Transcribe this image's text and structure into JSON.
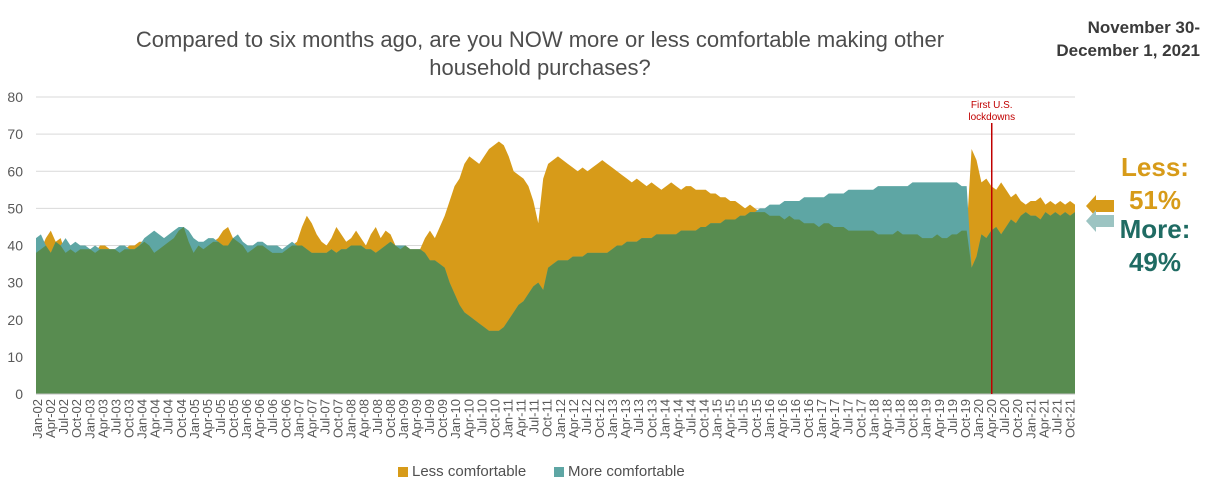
{
  "chart_data": {
    "type": "area",
    "title": "Compared to six months ago, are you NOW more or less comfortable making other household purchases?",
    "subtitle": "November 30-December 1, 2021",
    "date_line1": "November 30-",
    "date_line2": "December 1, 2021",
    "ylim": [
      0,
      80
    ],
    "yticks": [
      0,
      10,
      20,
      30,
      40,
      50,
      60,
      70,
      80
    ],
    "grid": true,
    "x_tick_labels": [
      "Jan-02",
      "Apr-02",
      "Jul-02",
      "Oct-02",
      "Jan-03",
      "Apr-03",
      "Jul-03",
      "Oct-03",
      "Jan-04",
      "Apr-04",
      "Jul-04",
      "Oct-04",
      "Jan-05",
      "Apr-05",
      "Jul-05",
      "Oct-05",
      "Jan-06",
      "Apr-06",
      "Jul-06",
      "Oct-06",
      "Jan-07",
      "Apr-07",
      "Jul-07",
      "Oct-07",
      "Jan-08",
      "Apr-08",
      "Jul-08",
      "Oct-08",
      "Jan-09",
      "Apr-09",
      "Jul-09",
      "Oct-09",
      "Jan-10",
      "Apr-10",
      "Jul-10",
      "Oct-10",
      "Jan-11",
      "Apr-11",
      "Jul-11",
      "Oct-11",
      "Jan-12",
      "Apr-12",
      "Jul-12",
      "Oct-12",
      "Jan-13",
      "Apr-13",
      "Jul-13",
      "Oct-13",
      "Jan-14",
      "Apr-14",
      "Jul-14",
      "Oct-14",
      "Jan-15",
      "Apr-15",
      "Jul-15",
      "Oct-15",
      "Jan-16",
      "Apr-16",
      "Jul-16",
      "Oct-16",
      "Jan-17",
      "Apr-17",
      "Jul-17",
      "Oct-17",
      "Jan-18",
      "Apr-18",
      "Jul-18",
      "Oct-18",
      "Jan-19",
      "Apr-19",
      "Jul-19",
      "Oct-19",
      "Jan-20",
      "Apr-20",
      "Jul-20",
      "Oct-20",
      "Jan-21",
      "Apr-21",
      "Jul-21",
      "Oct-21"
    ],
    "legend_position": "bottom",
    "series": [
      {
        "name": "Less comfortable",
        "color": "#d79b19",
        "values": [
          38,
          39,
          42,
          44,
          41,
          42,
          38,
          39,
          38,
          39,
          39,
          39,
          38,
          40,
          40,
          39,
          39,
          38,
          39,
          40,
          40,
          41,
          41,
          40,
          38,
          39,
          40,
          41,
          42,
          44,
          45,
          41,
          38,
          40,
          39,
          40,
          41,
          42,
          44,
          45,
          42,
          41,
          40,
          38,
          39,
          40,
          40,
          39,
          38,
          38,
          38,
          39,
          40,
          41,
          45,
          48,
          46,
          43,
          41,
          40,
          42,
          45,
          43,
          41,
          42,
          44,
          42,
          40,
          43,
          45,
          42,
          44,
          43,
          40,
          39,
          40,
          39,
          39,
          39,
          42,
          44,
          42,
          45,
          48,
          52,
          56,
          58,
          62,
          64,
          63,
          62,
          64,
          66,
          67,
          68,
          67,
          64,
          60,
          59,
          58,
          56,
          52,
          46,
          58,
          62,
          63,
          64,
          63,
          62,
          61,
          60,
          61,
          60,
          61,
          62,
          63,
          62,
          61,
          60,
          59,
          58,
          57,
          58,
          57,
          56,
          57,
          56,
          55,
          56,
          57,
          56,
          55,
          56,
          56,
          55,
          55,
          55,
          54,
          54,
          53,
          53,
          52,
          52,
          51,
          50,
          51,
          50,
          49,
          49,
          48,
          48,
          48,
          47,
          48,
          47,
          47,
          46,
          46,
          46,
          45,
          46,
          46,
          45,
          45,
          45,
          44,
          44,
          44,
          44,
          44,
          44,
          43,
          43,
          43,
          43,
          44,
          43,
          43,
          43,
          43,
          42,
          42,
          42,
          43,
          42,
          42,
          43,
          43,
          44,
          44,
          66,
          63,
          57,
          58,
          56,
          55,
          57,
          55,
          53,
          54,
          52,
          51,
          52,
          52,
          53,
          51,
          52,
          51,
          52,
          51,
          52,
          51
        ]
      },
      {
        "name": "More comfortable",
        "color": "#5ea6a4",
        "values": [
          42,
          43,
          40,
          38,
          41,
          40,
          42,
          40,
          41,
          40,
          40,
          39,
          40,
          39,
          39,
          39,
          39,
          40,
          40,
          39,
          39,
          40,
          42,
          43,
          44,
          43,
          42,
          43,
          44,
          45,
          45,
          44,
          42,
          41,
          41,
          42,
          42,
          41,
          40,
          40,
          42,
          43,
          41,
          40,
          40,
          41,
          41,
          40,
          40,
          40,
          39,
          40,
          41,
          40,
          40,
          39,
          38,
          38,
          38,
          38,
          39,
          38,
          39,
          39,
          40,
          40,
          40,
          39,
          39,
          38,
          39,
          40,
          41,
          40,
          40,
          40,
          39,
          39,
          39,
          38,
          36,
          36,
          35,
          34,
          30,
          27,
          24,
          22,
          21,
          20,
          19,
          18,
          17,
          17,
          17,
          18,
          20,
          22,
          24,
          25,
          27,
          29,
          30,
          28,
          34,
          35,
          36,
          36,
          36,
          37,
          37,
          37,
          38,
          38,
          38,
          38,
          38,
          39,
          40,
          40,
          41,
          41,
          41,
          42,
          42,
          42,
          43,
          43,
          43,
          43,
          43,
          44,
          44,
          44,
          44,
          45,
          45,
          46,
          46,
          46,
          47,
          47,
          47,
          48,
          48,
          49,
          49,
          50,
          50,
          51,
          51,
          51,
          52,
          52,
          52,
          52,
          53,
          53,
          53,
          53,
          53,
          54,
          54,
          54,
          54,
          55,
          55,
          55,
          55,
          55,
          55,
          56,
          56,
          56,
          56,
          56,
          56,
          56,
          57,
          57,
          57,
          57,
          57,
          57,
          57,
          57,
          57,
          57,
          56,
          56,
          34,
          37,
          43,
          42,
          44,
          45,
          43,
          45,
          47,
          46,
          48,
          49,
          48,
          48,
          47,
          49,
          48,
          49,
          48,
          49,
          48,
          49
        ]
      }
    ],
    "annotation": {
      "label_line1": "First U.S.",
      "label_line2": "lockdowns",
      "x_label": "Mar-20",
      "color": "#c00000"
    },
    "latest": {
      "less_label": "Less:",
      "less_value": "51%",
      "more_label": "More:",
      "more_value": "49%"
    },
    "base_color": "#588c50"
  }
}
